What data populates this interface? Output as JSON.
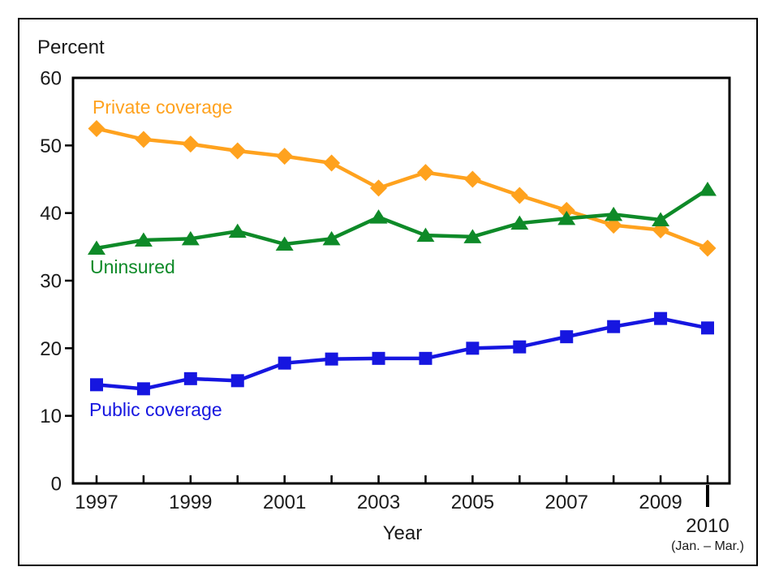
{
  "window": {
    "background": "#ffffff",
    "border_color": "#000000"
  },
  "chart_data": {
    "type": "line",
    "title": "",
    "ylabel": "Percent",
    "xlabel": "Year",
    "ylim": [
      0,
      60
    ],
    "yticks": [
      0,
      10,
      20,
      30,
      40,
      50,
      60
    ],
    "x": [
      1997,
      1998,
      1999,
      2000,
      2001,
      2002,
      2003,
      2004,
      2005,
      2006,
      2007,
      2008,
      2009,
      2010
    ],
    "xtick_labels": [
      "1997",
      "1999",
      "2001",
      "2003",
      "2005",
      "2007",
      "2009"
    ],
    "final_tick": {
      "label": "2010",
      "sublabel": "(Jan. – Mar.)"
    },
    "grid": false,
    "legend_position": "inline-series-labels",
    "axis_color": "#000000",
    "series": [
      {
        "id": "private-coverage",
        "name": "Private coverage",
        "marker": "diamond",
        "color": "#FFA21E",
        "values": [
          52.5,
          50.9,
          50.2,
          49.2,
          48.4,
          47.4,
          43.7,
          46.0,
          45.0,
          42.6,
          40.4,
          38.2,
          37.5,
          34.8
        ]
      },
      {
        "id": "uninsured",
        "name": "Uninsured",
        "marker": "triangle",
        "color": "#0E8A28",
        "values": [
          34.8,
          36.0,
          36.2,
          37.3,
          35.4,
          36.2,
          39.4,
          36.7,
          36.5,
          38.5,
          39.2,
          39.8,
          39.0,
          43.5
        ]
      },
      {
        "id": "public-coverage",
        "name": "Public coverage",
        "marker": "square",
        "color": "#1616E0",
        "values": [
          14.6,
          14.0,
          15.5,
          15.2,
          17.8,
          18.4,
          18.5,
          18.5,
          20.0,
          20.2,
          21.7,
          23.2,
          24.4,
          23.0
        ]
      }
    ]
  }
}
